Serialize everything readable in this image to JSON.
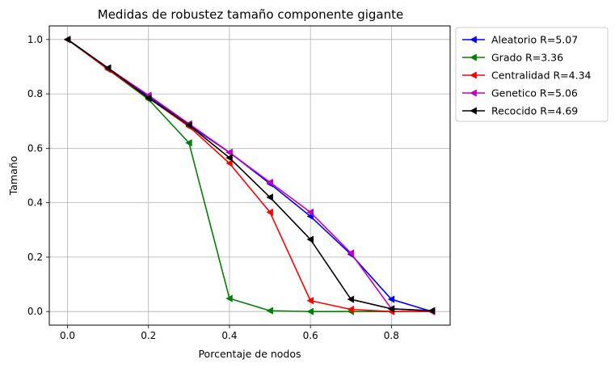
{
  "chart_data": {
    "type": "line",
    "title": "Medidas de robustez tamaño componente gigante",
    "xlabel": "Porcentaje de nodos",
    "ylabel": "Tamaño",
    "xlim": [
      -0.045,
      0.945
    ],
    "ylim": [
      -0.05,
      1.05
    ],
    "xticks": [
      0.0,
      0.2,
      0.4,
      0.6,
      0.8
    ],
    "xtick_labels": [
      "0.0",
      "0.2",
      "0.4",
      "0.6",
      "0.8"
    ],
    "yticks": [
      0.0,
      0.2,
      0.4,
      0.6,
      0.8,
      1.0
    ],
    "ytick_labels": [
      "0.0",
      "0.2",
      "0.4",
      "0.6",
      "0.8",
      "1.0"
    ],
    "grid": true,
    "legend_position": "outside-top-right",
    "marker": "left-triangle",
    "x": [
      0.0,
      0.1,
      0.2,
      0.3,
      0.4,
      0.5,
      0.6,
      0.7,
      0.8,
      0.9
    ],
    "series": [
      {
        "name": "Aleatorio R=5.07",
        "color": "#0000ff",
        "values": [
          1.0,
          0.895,
          0.79,
          0.685,
          0.585,
          0.47,
          0.35,
          0.21,
          0.045,
          0.0
        ]
      },
      {
        "name": "Grado R=3.36",
        "color": "#008000",
        "values": [
          1.0,
          0.89,
          0.78,
          0.62,
          0.048,
          0.003,
          0.0,
          0.0,
          0.0,
          0.0
        ]
      },
      {
        "name": "Centralidad R=4.34",
        "color": "#ff0000",
        "values": [
          1.0,
          0.89,
          0.785,
          0.68,
          0.545,
          0.365,
          0.04,
          0.008,
          0.0,
          0.0
        ]
      },
      {
        "name": "Genetico R=5.06",
        "color": "#bf00bf",
        "values": [
          1.0,
          0.895,
          0.795,
          0.69,
          0.585,
          0.475,
          0.365,
          0.215,
          0.01,
          0.002
        ]
      },
      {
        "name": "Recocido R=4.69",
        "color": "#000000",
        "values": [
          1.0,
          0.895,
          0.785,
          0.685,
          0.565,
          0.42,
          0.265,
          0.045,
          0.01,
          0.003
        ]
      }
    ]
  }
}
